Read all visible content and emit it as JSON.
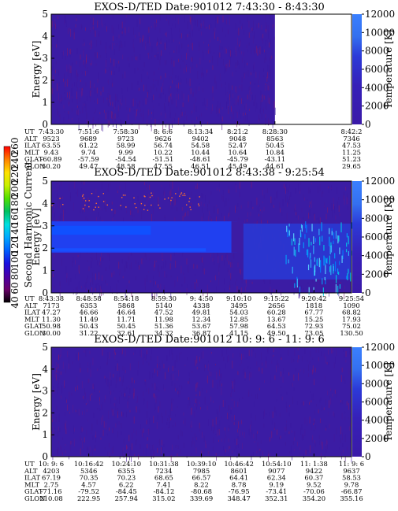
{
  "chart_data": {
    "type": "heatmap",
    "colorbar": {
      "label": "Second Harmonic Current",
      "ticks": [
        40,
        60,
        80,
        100,
        120,
        140,
        160,
        180,
        200,
        220,
        240,
        260
      ],
      "colors": [
        "#000000",
        "#6a006a",
        "#4a00a8",
        "#1a10e0",
        "#0060ff",
        "#00a8ff",
        "#00e0e0",
        "#00c060",
        "#50e000",
        "#c8f000",
        "#ffe000",
        "#ff8000",
        "#ff0000"
      ]
    },
    "row_labels": [
      "UT",
      "ALT",
      "ILAT",
      "MLT",
      "GLAT",
      "GLON"
    ],
    "panels": [
      {
        "title": "EXOS-D/TED   Date:901012   7:43:30 - 8:43:30",
        "ylabel": "Energy [eV]",
        "ylim": [
          0,
          5
        ],
        "yticks": [
          "0",
          "1",
          "2",
          "3",
          "4",
          "5"
        ],
        "y2label": "Temperature [K]",
        "y2lim": [
          0,
          12000
        ],
        "y2ticks": [
          "0",
          "2000",
          "4000",
          "6000",
          "8000",
          "10000",
          "12000"
        ],
        "data_end_fraction": 0.745,
        "band": null,
        "ut": [
          "7:43:30",
          "7:51:6",
          "7:58:30",
          "8: 6:6",
          "8:13:34",
          "8:21:2",
          "8:28:30",
          "8:42:2"
        ],
        "alt": [
          "9523",
          "9689",
          "9723",
          "9626",
          "9402",
          "9048",
          "8563",
          "7346"
        ],
        "ilat": [
          "63.55",
          "61.22",
          "58.99",
          "56.74",
          "54.58",
          "52.47",
          "50.45",
          "47.53"
        ],
        "mlt": [
          "9.43",
          "9.74",
          "9.99",
          "10.22",
          "10.44",
          "10.64",
          "10.84",
          "11.25"
        ],
        "glat": [
          "-60.89",
          "-57.59",
          "-54.54",
          "-51.51",
          "-48.61",
          "-45.79",
          "-43.11",
          "51.23"
        ],
        "glon": [
          "50.20",
          "49.47",
          "48.58",
          "47.55",
          "46.51",
          "45.49",
          "44.61",
          "29.65"
        ]
      },
      {
        "title": "EXOS-D/TED   Date:901012   8:43:38 - 9:25:54",
        "ylabel": "Energy [eV]",
        "ylim": [
          0,
          5
        ],
        "yticks": [
          "0",
          "1",
          "2",
          "3",
          "4",
          "5"
        ],
        "y2label": "Temperature [K]",
        "y2lim": [
          0,
          12000
        ],
        "y2ticks": [
          "0",
          "2000",
          "4000",
          "6000",
          "8000",
          "10000",
          "12000"
        ],
        "data_end_fraction": 1.0,
        "band": [
          1.8,
          3.2
        ],
        "ut": [
          "8:43:38",
          "8:48:58",
          "8:54:18",
          "8:59:30",
          "9: 4:50",
          "9:10:10",
          "9:15:22",
          "9:20:42",
          "9:25:54"
        ],
        "alt": [
          "7173",
          "6353",
          "5868",
          "5140",
          "4338",
          "3495",
          "2656",
          "1818",
          "1090"
        ],
        "ilat": [
          "47.27",
          "46.66",
          "46.64",
          "47.52",
          "49.81",
          "54.03",
          "60.28",
          "67.77",
          "68.82"
        ],
        "mlt": [
          "11.30",
          "11.49",
          "11.71",
          "11.98",
          "12.34",
          "12.85",
          "13.67",
          "15.25",
          "17.93"
        ],
        "glat": [
          "50.98",
          "50.43",
          "50.45",
          "51.36",
          "53.67",
          "57.98",
          "64.53",
          "72.93",
          "75.02"
        ],
        "glon": [
          "30.00",
          "31.22",
          "32.61",
          "34.32",
          "36.87",
          "41.15",
          "49.50",
          "73.05",
          "130.50"
        ]
      },
      {
        "title": "EXOS-D/TED   Date:901012   10: 9: 6 - 11: 9: 6",
        "ylabel": "Energy [eV]",
        "ylim": [
          0,
          5
        ],
        "yticks": [
          "0",
          "1",
          "2",
          "3",
          "4",
          "5"
        ],
        "y2label": "Temperature [K]",
        "y2lim": [
          0,
          12000
        ],
        "y2ticks": [
          "0",
          "2000",
          "4000",
          "6000",
          "8000",
          "10000",
          "12000"
        ],
        "data_end_fraction": 1.0,
        "band": null,
        "ut": [
          "10: 9: 6",
          "10:16:42",
          "10:24:10",
          "10:31:38",
          "10:39:10",
          "10:46:42",
          "10:54:10",
          "11: 1:38",
          "11: 9: 6"
        ],
        "alt": [
          "4203",
          "5346",
          "6355",
          "7234",
          "7985",
          "8601",
          "9077",
          "9422",
          "9637"
        ],
        "ilat": [
          "67.19",
          "70.35",
          "70.23",
          "68.65",
          "66.57",
          "64.41",
          "62.34",
          "60.37",
          "58.53"
        ],
        "mlt": [
          "2.75",
          "4.57",
          "6.22",
          "7.41",
          "8.22",
          "8.78",
          "9.19",
          "9.52",
          "9.78"
        ],
        "glat": [
          "-71.16",
          "-79.52",
          "-84.45",
          "-84.12",
          "-80.68",
          "-76.95",
          "-73.41",
          "-70.06",
          "-66.87"
        ],
        "glon": [
          "210.08",
          "222.95",
          "257.94",
          "315.02",
          "339.69",
          "348.47",
          "352.31",
          "354.20",
          "355.16"
        ]
      }
    ]
  }
}
